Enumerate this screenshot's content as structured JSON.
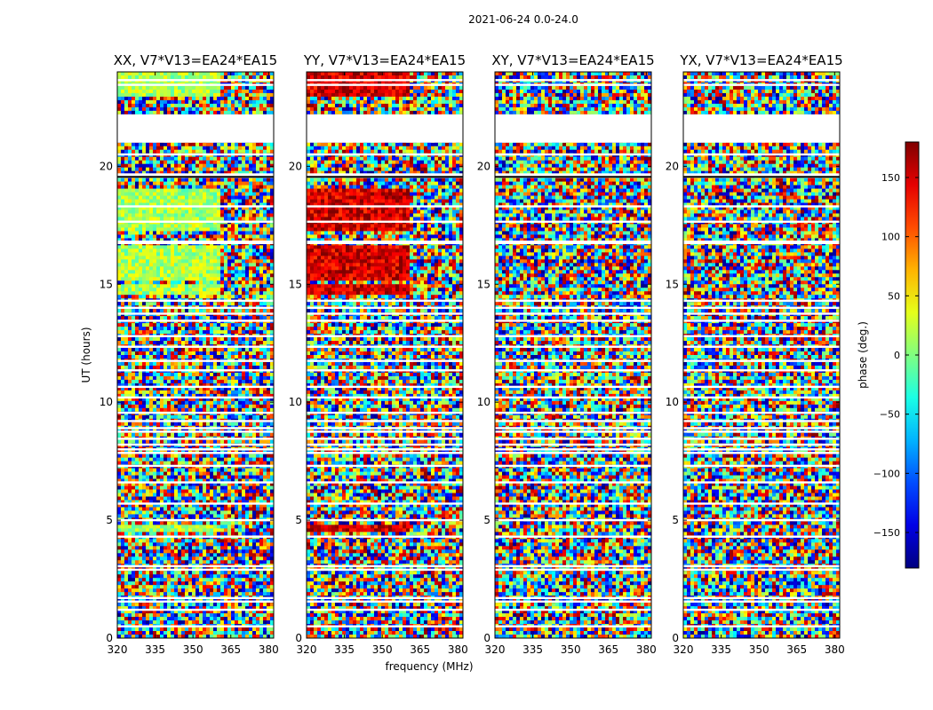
{
  "figure": {
    "suptitle": "2021-06-24 0.0-24.0",
    "xlabel": "frequency (MHz)",
    "ylabel": "UT (hours)"
  },
  "chart_data": {
    "type": "heatmap",
    "title": "2021-06-24 0.0-24.0",
    "xlabel": "frequency (MHz)",
    "ylabel": "UT (hours)",
    "xlim": [
      320,
      382
    ],
    "ylim": [
      0,
      24
    ],
    "x_ticks": [
      320,
      335,
      350,
      365,
      380
    ],
    "y_ticks": [
      0,
      5,
      10,
      15,
      20
    ],
    "colormap": "jet",
    "colorbar": {
      "label": "phase (deg.)",
      "range": [
        -180,
        180
      ],
      "ticks": [
        -150,
        -100,
        -50,
        0,
        50,
        100,
        150
      ],
      "tick_labels": [
        "−150",
        "−100",
        "−50",
        "0",
        "50",
        "100",
        "150"
      ]
    },
    "panels": [
      {
        "title": "XX, V7*V13=EA24*EA15",
        "coherent_phase_deg": 15
      },
      {
        "title": "YY, V7*V13=EA24*EA15",
        "coherent_phase_deg": 150
      },
      {
        "title": "XY, V7*V13=EA24*EA15",
        "coherent_phase_deg": null
      },
      {
        "title": "YX, V7*V13=EA24*EA15",
        "coherent_phase_deg": null
      }
    ],
    "coherent_segments_ut": [
      [
        4.5,
        4.85
      ],
      [
        14.55,
        15.05
      ],
      [
        15.2,
        16.6
      ],
      [
        17.3,
        19.1
      ],
      [
        22.9,
        24.0
      ]
    ],
    "coherent_freq_max_mhz": 361,
    "flagged_ut_ranges": [
      [
        19.5,
        19.7
      ],
      [
        21.0,
        22.2
      ],
      [
        16.7,
        16.85
      ]
    ],
    "flagged_ut_lines": [
      0.5,
      1.2,
      1.55,
      1.7,
      2.9,
      3.05,
      4.3,
      5.0,
      5.7,
      6.6,
      7.3,
      7.85,
      8.0,
      8.2,
      8.45,
      8.75,
      8.9,
      9.2,
      9.55,
      10.2,
      10.65,
      11.35,
      11.75,
      12.35,
      12.8,
      13.45,
      13.75,
      14.0,
      14.3,
      17.65,
      18.3,
      20.5,
      23.45,
      23.65
    ]
  }
}
